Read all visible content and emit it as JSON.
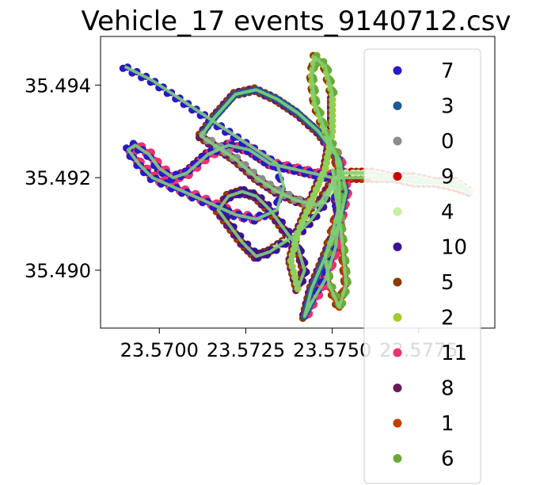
{
  "chart_data": {
    "type": "scatter",
    "title": "Vehicle_17 events_9140712.csv",
    "xlabel": "",
    "ylabel": "",
    "xlim": [
      23.5683,
      23.5797
    ],
    "ylim": [
      35.48875,
      35.49505
    ],
    "x_ticks": [
      {
        "value": 23.57,
        "label": "23.5700"
      },
      {
        "value": 23.5725,
        "label": "23.5725"
      },
      {
        "value": 23.575,
        "label": "23.5750"
      },
      {
        "value": 23.5775,
        "label": "23.5775"
      }
    ],
    "y_ticks": [
      {
        "value": 35.49,
        "label": "35.490"
      },
      {
        "value": 35.492,
        "label": "35.492"
      },
      {
        "value": 35.494,
        "label": "35.494"
      }
    ],
    "grid": false,
    "legend_position": "right",
    "route_lon": [
      23.569,
      23.5698,
      23.5704,
      23.571,
      23.5716,
      23.5722,
      23.5728,
      23.5734,
      23.5736,
      23.5734,
      23.5728,
      23.5722,
      23.5716,
      23.571,
      23.5704,
      23.5698,
      23.5694,
      23.5691,
      23.5693,
      23.5697,
      23.57,
      23.5704,
      23.5708,
      23.5714,
      23.572,
      23.5726,
      23.5732,
      23.5738,
      23.5744,
      23.575,
      23.5752,
      23.5751,
      23.5748,
      23.5744,
      23.5742,
      23.5744,
      23.5748,
      23.5752,
      23.5754,
      23.5752,
      23.5746,
      23.574,
      23.5734,
      23.5728,
      23.5722,
      23.5716,
      23.5712,
      23.5716,
      23.5722,
      23.5728,
      23.5734,
      23.574,
      23.5746,
      23.5751,
      23.5756,
      23.5762,
      23.5768,
      23.5774,
      23.578,
      23.5786,
      23.579,
      23.5786,
      23.578,
      23.5774,
      23.5768,
      23.5762,
      23.5756,
      23.5752,
      23.5748,
      23.5744,
      23.574,
      23.5736,
      23.5732,
      23.5728,
      23.5724,
      23.572,
      23.5717,
      23.572,
      23.5724,
      23.5728,
      23.5732,
      23.5736,
      23.574,
      23.5742,
      23.574,
      23.5738,
      23.574,
      23.5744,
      23.5748,
      23.575,
      23.575,
      23.5748,
      23.5745,
      23.5744,
      23.5745,
      23.5748,
      23.5751,
      23.5752,
      23.5752,
      23.575,
      23.5748,
      23.5749,
      23.5752,
      23.5754,
      23.5753,
      23.5752,
      23.5751,
      23.575
    ],
    "route_lat": [
      35.4944,
      35.4941,
      35.4938,
      35.4935,
      35.4932,
      35.4929,
      35.4926,
      35.4923,
      35.4918,
      35.4913,
      35.4911,
      35.4912,
      35.4914,
      35.4916,
      35.4918,
      35.492,
      35.4923,
      35.4926,
      35.4927,
      35.4925,
      35.4922,
      35.492,
      35.4921,
      35.4925,
      35.4927,
      35.4926,
      35.4923,
      35.4922,
      35.4921,
      35.492,
      35.4912,
      35.4905,
      35.4898,
      35.4893,
      35.489,
      35.4896,
      35.4903,
      35.491,
      35.4917,
      35.4924,
      35.493,
      35.4934,
      35.4937,
      35.4939,
      35.4938,
      35.4933,
      35.4929,
      35.4927,
      35.4924,
      35.492,
      35.4917,
      35.4915,
      35.4914,
      35.492,
      35.492,
      35.492,
      35.492,
      35.4919,
      35.4919,
      35.4918,
      35.4917,
      35.4919,
      35.4919,
      35.492,
      35.492,
      35.4921,
      35.4921,
      35.4921,
      35.4915,
      35.4911,
      35.4908,
      35.4906,
      35.4904,
      35.4903,
      35.4906,
      35.491,
      35.4913,
      35.4916,
      35.4917,
      35.4916,
      35.4913,
      35.4909,
      35.4905,
      35.49,
      35.4896,
      35.4902,
      35.4908,
      35.4915,
      35.4922,
      35.493,
      35.4938,
      35.4944,
      35.4946,
      35.4942,
      35.4936,
      35.493,
      35.4925,
      35.492,
      35.4914,
      35.4908,
      35.4903,
      35.4897,
      35.4892,
      35.4897,
      35.4905,
      35.4912,
      35.4918,
      35.4922
    ],
    "series": [
      {
        "name": "7",
        "color": "#2a18c8",
        "range": [
          0,
          33
        ]
      },
      {
        "name": "3",
        "color": "#1a5a98",
        "range": [
          33,
          46
        ]
      },
      {
        "name": "0",
        "color": "#8c8c8c",
        "range": [
          46,
          53
        ]
      },
      {
        "name": "9",
        "color": "#cc0000",
        "range": [
          53,
          68
        ]
      },
      {
        "name": "4",
        "color": "#c8eea0",
        "range": [
          55,
          72
        ]
      },
      {
        "name": "10",
        "color": "#3a1296",
        "range": [
          68,
          84
        ]
      },
      {
        "name": "5",
        "color": "#8a3a06",
        "range": [
          0,
          108
        ]
      },
      {
        "name": "2",
        "color": "#a4cc2e",
        "range": [
          84,
          96
        ]
      },
      {
        "name": "11",
        "color": "#ec3274",
        "range": [
          10,
          40
        ]
      },
      {
        "name": "8",
        "color": "#6a1a5a",
        "range": [
          20,
          90
        ]
      },
      {
        "name": "1",
        "color": "#cc3a00",
        "range": [
          40,
          108
        ]
      },
      {
        "name": "6",
        "color": "#6aaa36",
        "range": [
          90,
          108
        ]
      }
    ],
    "route_line_color": "#7fd07a"
  }
}
